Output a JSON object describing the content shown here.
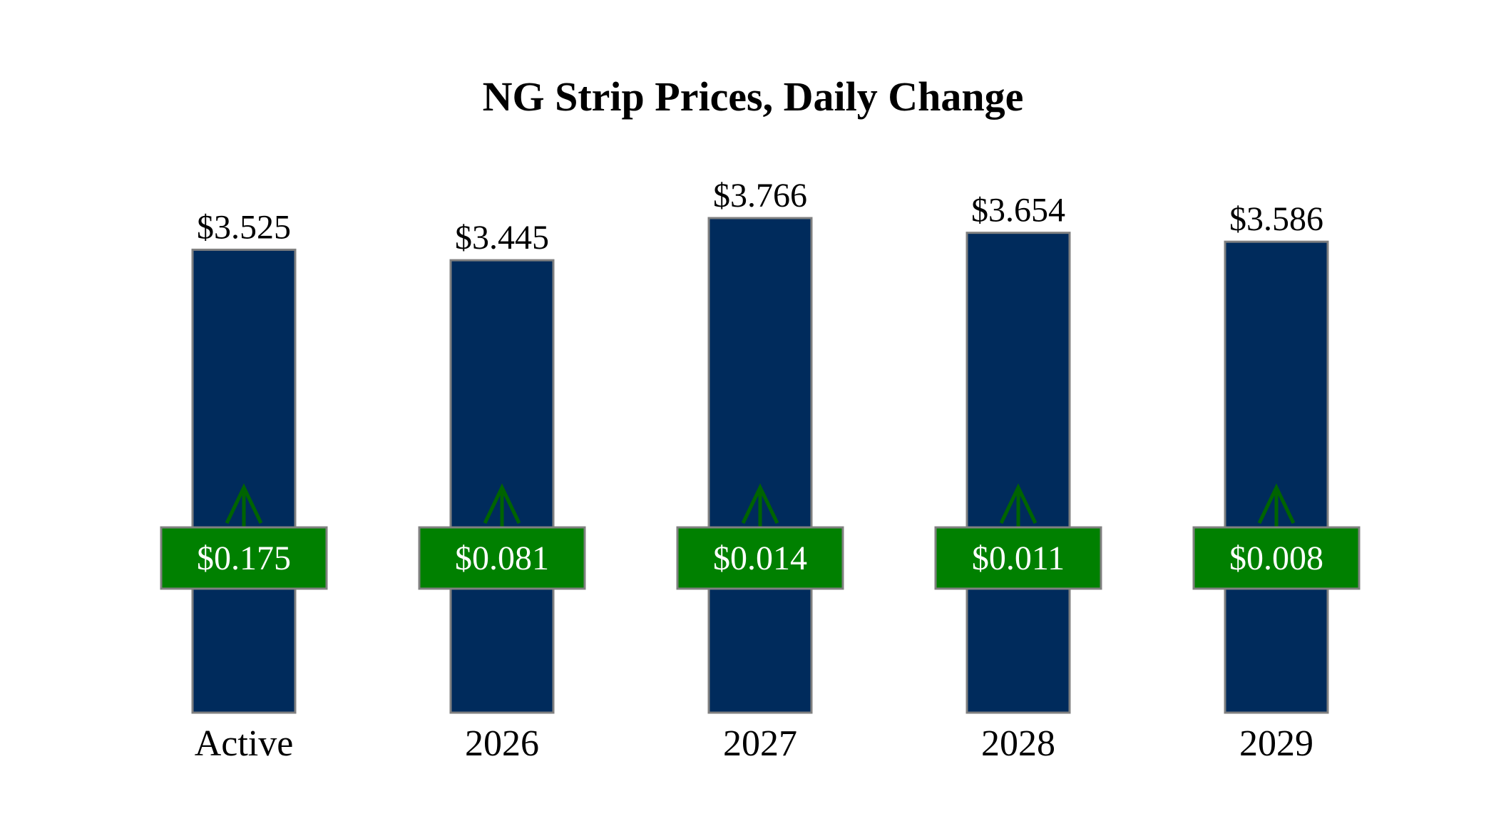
{
  "chart_data": {
    "type": "bar",
    "title": "NG Strip Prices, Daily Change",
    "xlabel": "",
    "ylabel": "",
    "categories": [
      "Active",
      "2026",
      "2027",
      "2028",
      "2029"
    ],
    "values": [
      3.525,
      3.445,
      3.766,
      3.654,
      3.586
    ],
    "value_labels": [
      "$3.525",
      "$3.445",
      "$3.766",
      "$3.654",
      "$3.586"
    ],
    "daily_change": {
      "values": [
        0.175,
        0.081,
        0.014,
        0.011,
        0.008
      ],
      "labels": [
        "$0.175",
        "$0.081",
        "$0.014",
        "$0.011",
        "$0.008"
      ],
      "direction": [
        "up",
        "up",
        "up",
        "up",
        "up"
      ]
    },
    "grid": false,
    "legend": "none",
    "colors": {
      "bar": "#002B5C",
      "bar_border": "#808080",
      "change_box": "#008000",
      "change_box_border": "#808080",
      "arrow": "#006400",
      "change_text": "#FFFFFF"
    }
  }
}
